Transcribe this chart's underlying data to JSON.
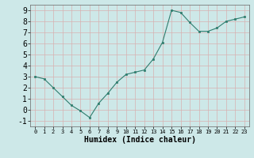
{
  "x": [
    0,
    1,
    2,
    3,
    4,
    5,
    6,
    7,
    8,
    9,
    10,
    11,
    12,
    13,
    14,
    15,
    16,
    17,
    18,
    19,
    20,
    21,
    22,
    23
  ],
  "y": [
    3.0,
    2.8,
    2.0,
    1.2,
    0.4,
    -0.1,
    -0.7,
    0.6,
    1.5,
    2.5,
    3.2,
    3.4,
    3.6,
    4.6,
    6.1,
    9.0,
    8.8,
    7.9,
    7.1,
    7.1,
    7.4,
    8.0,
    8.2,
    8.4
  ],
  "line_color": "#2e7d6e",
  "marker": "s",
  "marker_size": 2.0,
  "bg_color": "#cde8e8",
  "grid_color": "#b0d0d0",
  "xlabel": "Humidex (Indice chaleur)",
  "xlim": [
    -0.5,
    23.5
  ],
  "ylim": [
    -1.5,
    9.5
  ],
  "yticks": [
    -1,
    0,
    1,
    2,
    3,
    4,
    5,
    6,
    7,
    8,
    9
  ],
  "xticks": [
    0,
    1,
    2,
    3,
    4,
    5,
    6,
    7,
    8,
    9,
    10,
    11,
    12,
    13,
    14,
    15,
    16,
    17,
    18,
    19,
    20,
    21,
    22,
    23
  ],
  "xlabel_fontsize": 7,
  "ytick_fontsize": 7,
  "xtick_fontsize": 5.0
}
